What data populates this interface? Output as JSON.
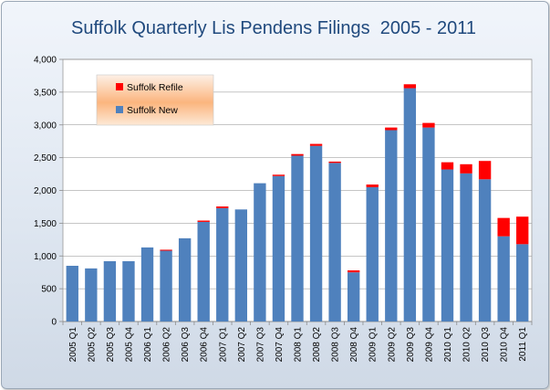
{
  "chart_data": {
    "type": "bar",
    "stacked": true,
    "title": "Suffolk Quarterly Lis Pendens Filings  2005 - 2011",
    "xlabel": "",
    "ylabel": "",
    "ylim": [
      0,
      4000
    ],
    "yticks": [
      "0",
      "500",
      "1,000",
      "1,500",
      "2,000",
      "2,500",
      "3,000",
      "3,500",
      "4,000"
    ],
    "ytick_values": [
      0,
      500,
      1000,
      1500,
      2000,
      2500,
      3000,
      3500,
      4000
    ],
    "grid": true,
    "legend_position": "top-left",
    "categories": [
      "2005 Q1",
      "2005 Q2",
      "2005 Q3",
      "2005 Q4",
      "2006 Q1",
      "2006 Q2",
      "2006 Q3",
      "2006 Q4",
      "2007 Q1",
      "2007 Q2",
      "2007 Q3",
      "2007 Q4",
      "2008 Q1",
      "2008 Q2",
      "2008 Q3",
      "2008 Q4",
      "2009 Q1",
      "2009 Q2",
      "2009 Q3",
      "2009 Q4",
      "2010 Q1",
      "2010 Q2",
      "2010 Q3",
      "2010 Q4",
      "2011 Q1"
    ],
    "series": [
      {
        "name": "Suffolk New",
        "color": "#4f81bd",
        "values": [
          850,
          810,
          920,
          920,
          1130,
          1080,
          1270,
          1520,
          1730,
          1710,
          2110,
          2220,
          2530,
          2680,
          2420,
          750,
          2050,
          2920,
          3560,
          2960,
          2320,
          2260,
          2170,
          1300,
          1180
        ]
      },
      {
        "name": "Suffolk Refile",
        "color": "#ff0000",
        "values": [
          0,
          0,
          0,
          0,
          0,
          15,
          0,
          20,
          25,
          0,
          0,
          20,
          25,
          30,
          20,
          30,
          40,
          40,
          60,
          70,
          110,
          140,
          280,
          280,
          420
        ]
      }
    ]
  }
}
